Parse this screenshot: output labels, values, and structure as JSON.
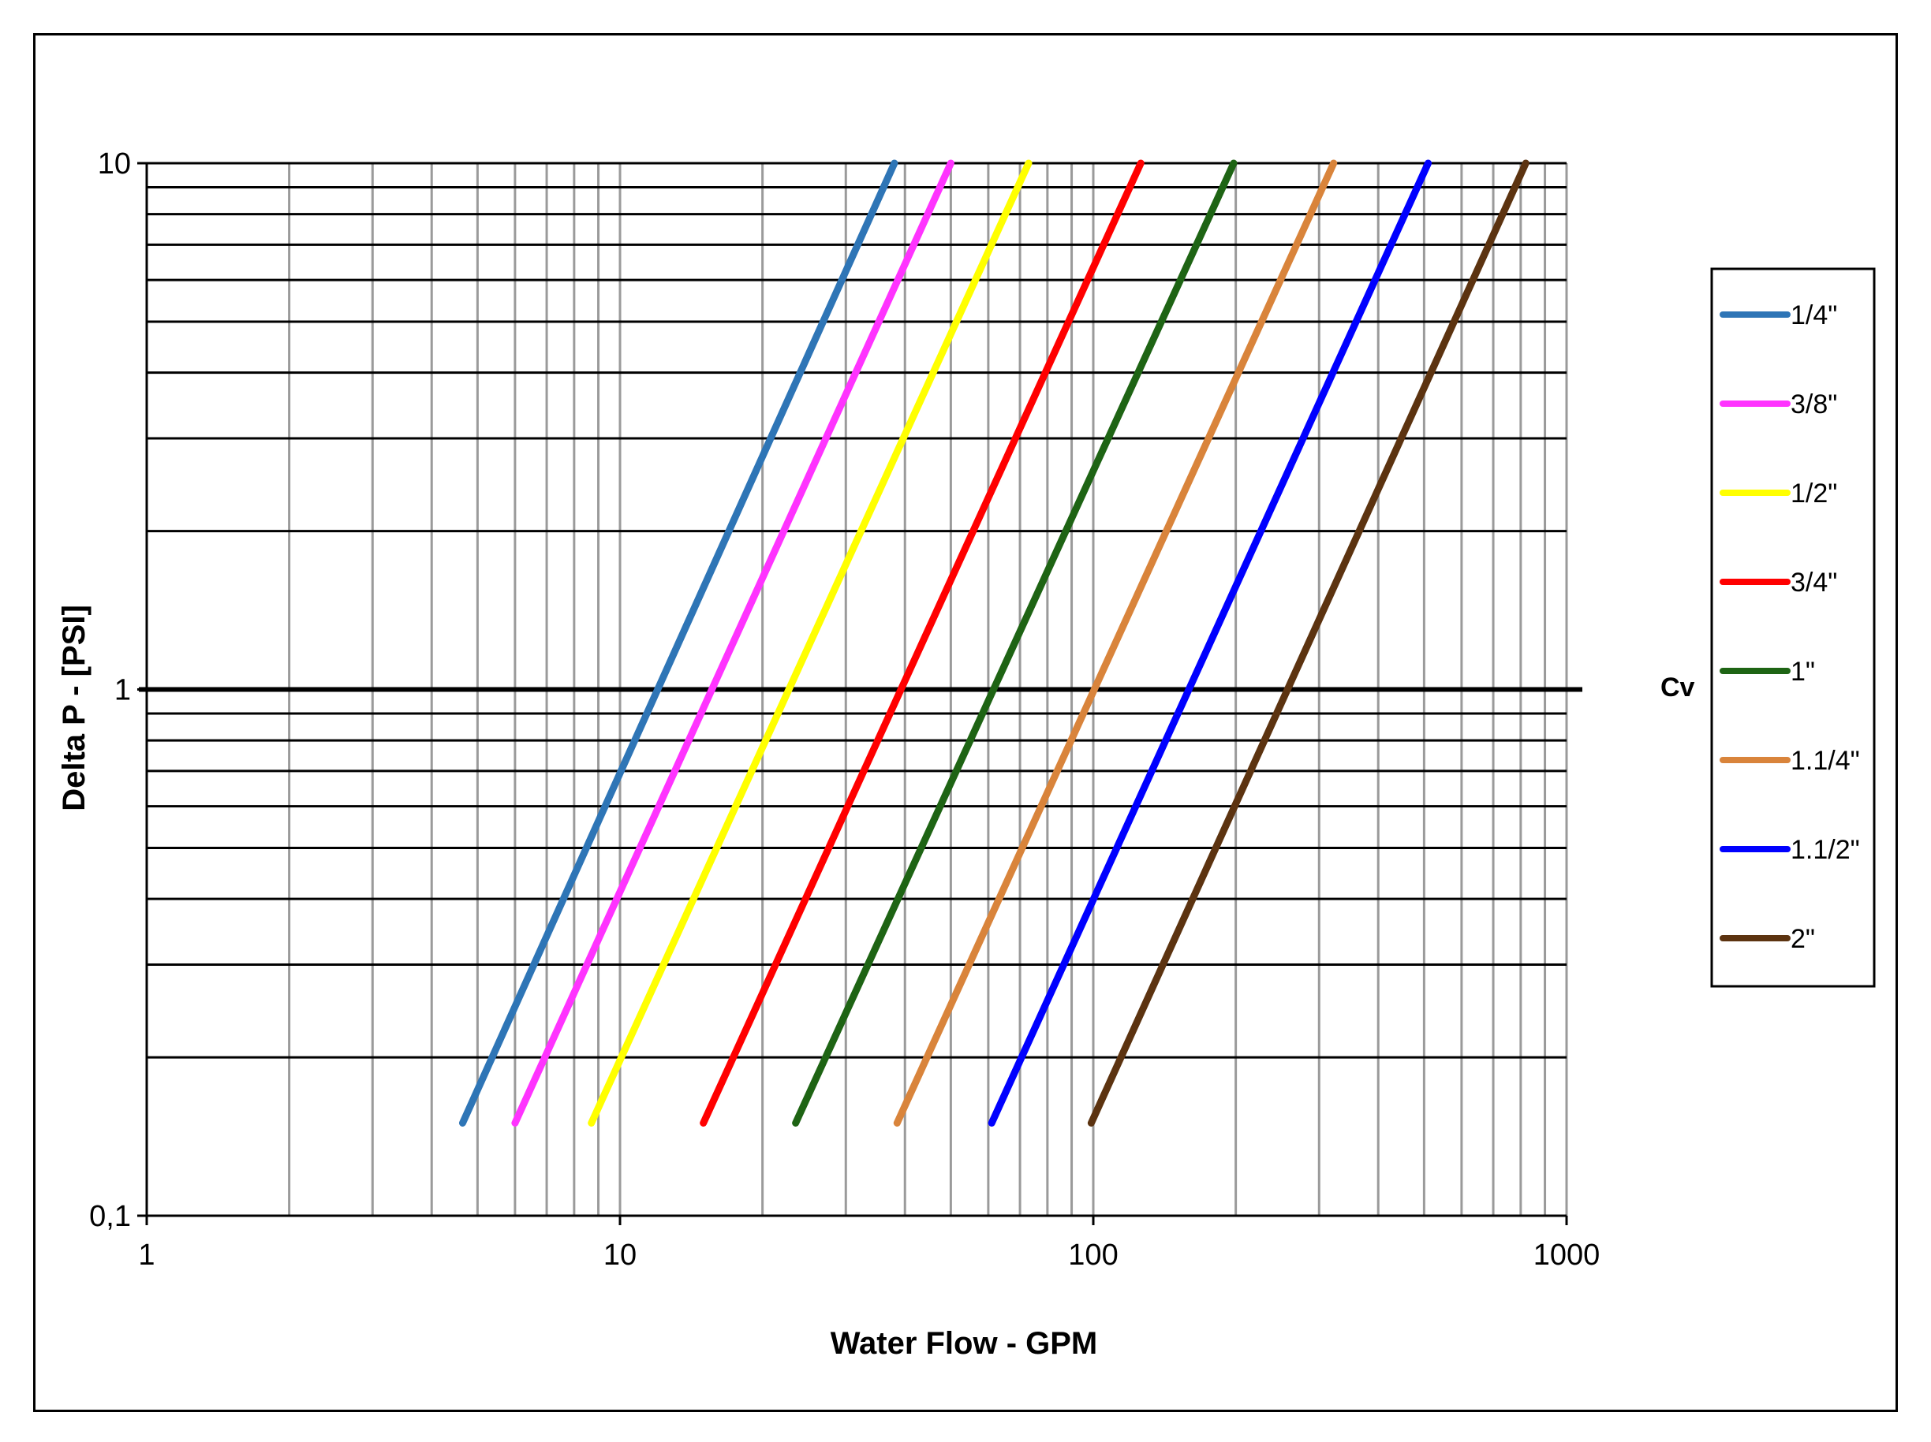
{
  "chart_data": {
    "type": "line",
    "title": "",
    "xlabel": "Water Flow - GPM",
    "ylabel": "Delta P - [PSI]",
    "x_scale": "log",
    "y_scale": "log",
    "xlim": [
      1,
      1000
    ],
    "ylim": [
      0.1,
      10
    ],
    "x_ticks": [
      "1",
      "10",
      "100",
      "1000"
    ],
    "y_ticks": [
      "0,1",
      "1",
      "10"
    ],
    "grid": true,
    "legend_position": "right",
    "reference_line": {
      "label": "Cv",
      "y": 1
    },
    "series": [
      {
        "name": "1/4\"",
        "color": "#2e75b6",
        "cv": 12,
        "x": [
          4.65,
          38.0
        ],
        "y": [
          0.15,
          10
        ]
      },
      {
        "name": "3/8\"",
        "color": "#ff33ff",
        "cv": 15.5,
        "x": [
          6.0,
          50.0
        ],
        "y": [
          0.15,
          10
        ]
      },
      {
        "name": "1/2\"",
        "color": "#ffff00",
        "cv": 22.5,
        "x": [
          8.7,
          73.0
        ],
        "y": [
          0.15,
          10
        ]
      },
      {
        "name": "3/4\"",
        "color": "#ff0000",
        "cv": 39,
        "x": [
          15.0,
          126.0
        ],
        "y": [
          0.15,
          10
        ]
      },
      {
        "name": "1\"",
        "color": "#1e6414",
        "cv": 61,
        "x": [
          23.5,
          198.0
        ],
        "y": [
          0.15,
          10
        ]
      },
      {
        "name": "1.1/4\"",
        "color": "#d9843b",
        "cv": 99,
        "x": [
          38.5,
          322.0
        ],
        "y": [
          0.15,
          10
        ]
      },
      {
        "name": "1.1/2\"",
        "color": "#0000ff",
        "cv": 158,
        "x": [
          61.0,
          510.0
        ],
        "y": [
          0.15,
          10
        ]
      },
      {
        "name": "2\"",
        "color": "#5c3310",
        "cv": 255,
        "x": [
          99.0,
          820.0
        ],
        "y": [
          0.15,
          10
        ]
      }
    ]
  }
}
